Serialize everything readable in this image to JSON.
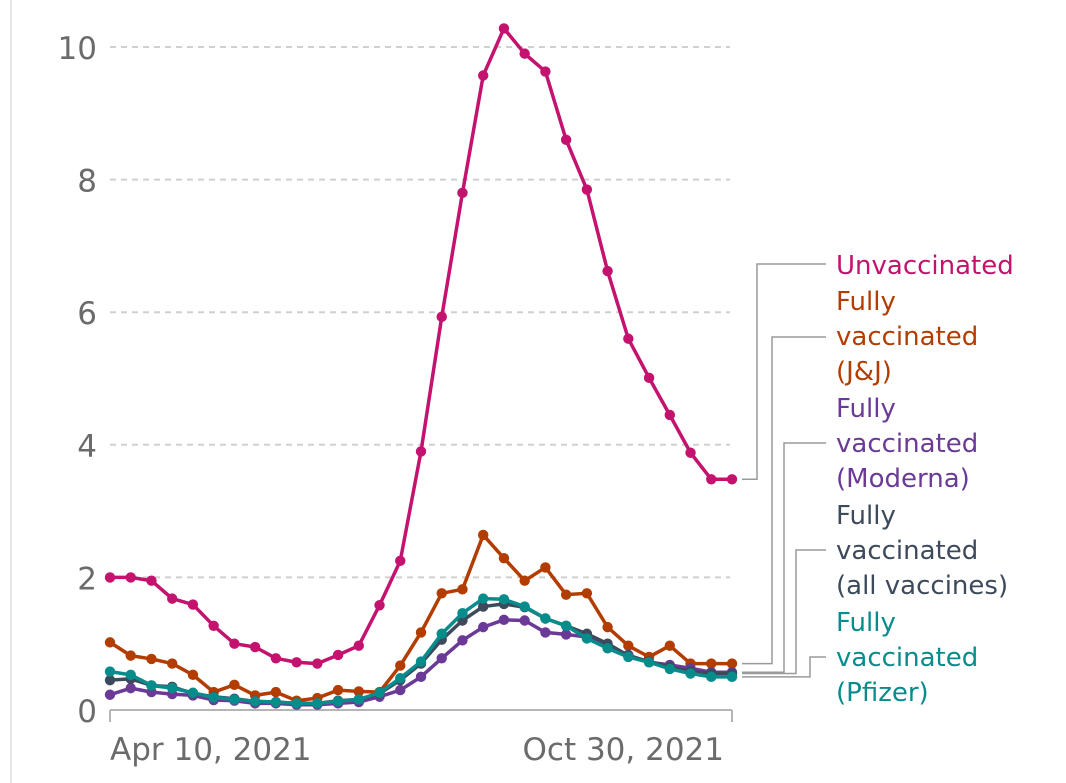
{
  "chart_data": {
    "type": "line",
    "title": "",
    "xlabel": "",
    "ylabel": "",
    "ylim": [
      0,
      10.5
    ],
    "yticks": [
      0,
      2,
      4,
      6,
      8,
      10
    ],
    "x_tick_labels": [
      "Apr 10, 2021",
      "Oct 30, 2021"
    ],
    "x": [
      "2021-04-03",
      "2021-04-10",
      "2021-04-17",
      "2021-04-24",
      "2021-05-01",
      "2021-05-08",
      "2021-05-15",
      "2021-05-22",
      "2021-05-29",
      "2021-06-05",
      "2021-06-12",
      "2021-06-19",
      "2021-06-26",
      "2021-07-03",
      "2021-07-10",
      "2021-07-17",
      "2021-07-24",
      "2021-07-31",
      "2021-08-07",
      "2021-08-14",
      "2021-08-21",
      "2021-08-28",
      "2021-09-04",
      "2021-09-11",
      "2021-09-18",
      "2021-09-25",
      "2021-10-02",
      "2021-10-09",
      "2021-10-16",
      "2021-10-23",
      "2021-10-30"
    ],
    "grid": true,
    "legend": "right",
    "series": [
      {
        "name": "Unvaccinated",
        "color": "#c3136e",
        "values": [
          2.0,
          2.0,
          1.95,
          1.68,
          1.59,
          1.27,
          1.0,
          0.95,
          0.78,
          0.72,
          0.7,
          0.83,
          0.97,
          1.58,
          2.25,
          3.9,
          5.93,
          7.8,
          9.57,
          10.28,
          9.9,
          9.63,
          8.6,
          7.85,
          6.62,
          5.6,
          5.01,
          4.45,
          3.88,
          3.48,
          3.48
        ]
      },
      {
        "name": "Fully vaccinated (J&J)",
        "color": "#b33c00",
        "values": [
          1.02,
          0.82,
          0.77,
          0.7,
          0.53,
          0.27,
          0.38,
          0.22,
          0.27,
          0.14,
          0.18,
          0.3,
          0.28,
          0.27,
          0.67,
          1.17,
          1.76,
          1.82,
          2.64,
          2.29,
          1.95,
          2.15,
          1.74,
          1.76,
          1.25,
          0.97,
          0.8,
          0.97,
          0.7,
          0.7,
          0.7
        ]
      },
      {
        "name": "Fully vaccinated (Moderna)",
        "color": "#6b3a96",
        "values": [
          0.23,
          0.33,
          0.27,
          0.24,
          0.22,
          0.15,
          0.14,
          0.1,
          0.1,
          0.08,
          0.08,
          0.1,
          0.12,
          0.2,
          0.3,
          0.5,
          0.78,
          1.05,
          1.25,
          1.36,
          1.35,
          1.17,
          1.14,
          1.1,
          0.95,
          0.83,
          0.72,
          0.68,
          0.63,
          0.57,
          0.57
        ]
      },
      {
        "name": "Fully vaccinated (all vaccines)",
        "color": "#3d4a5c",
        "values": [
          0.45,
          0.47,
          0.37,
          0.35,
          0.25,
          0.2,
          0.17,
          0.13,
          0.12,
          0.1,
          0.1,
          0.14,
          0.16,
          0.25,
          0.45,
          0.7,
          1.06,
          1.35,
          1.56,
          1.6,
          1.55,
          1.38,
          1.27,
          1.15,
          1.0,
          0.82,
          0.73,
          0.65,
          0.58,
          0.55,
          0.55
        ]
      },
      {
        "name": "Fully vaccinated (Pfizer)",
        "color": "#078c8c",
        "values": [
          0.58,
          0.53,
          0.37,
          0.33,
          0.26,
          0.19,
          0.16,
          0.13,
          0.12,
          0.1,
          0.1,
          0.13,
          0.16,
          0.26,
          0.48,
          0.73,
          1.15,
          1.46,
          1.68,
          1.67,
          1.56,
          1.38,
          1.27,
          1.08,
          0.93,
          0.8,
          0.72,
          0.62,
          0.55,
          0.5,
          0.5
        ]
      }
    ]
  },
  "legend": {
    "unvaccinated": [
      "Unvaccinated"
    ],
    "jj": [
      "Fully",
      "vaccinated",
      "(J&J)"
    ],
    "moderna": [
      "Fully",
      "vaccinated",
      "(Moderna)"
    ],
    "all": [
      "Fully",
      "vaccinated",
      "(all vaccines)"
    ],
    "pfizer": [
      "Fully",
      "vaccinated",
      "(Pfizer)"
    ]
  }
}
